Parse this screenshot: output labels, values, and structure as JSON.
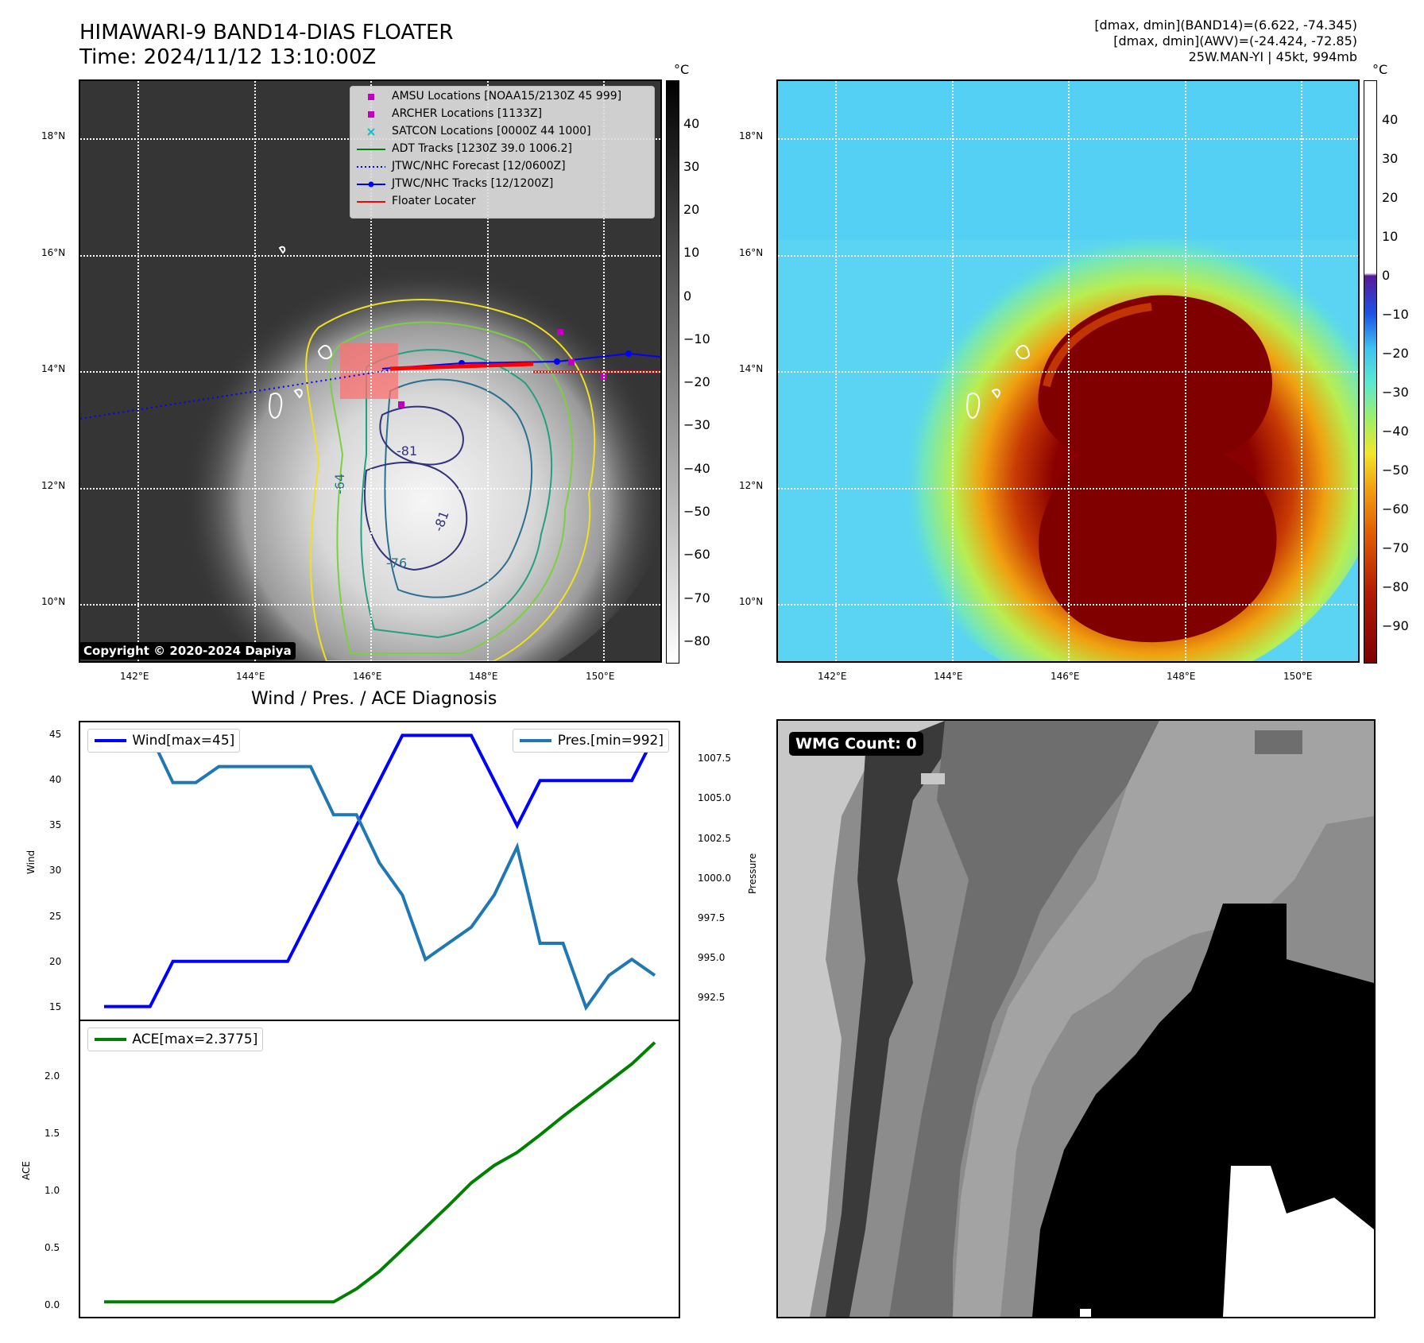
{
  "header": {
    "title_line1": "HIMAWARI-9 BAND14-DIAS FLOATER",
    "title_line2": "Time: 2024/11/12 13:10:00Z",
    "info_line1": "[dmax, dmin](BAND14)=(6.622, -74.345)",
    "info_line2": "[dmax, dmin](AWV)=(-24.424, -72.85)",
    "info_line3": "25W.MAN-YI | 45kt, 994mb"
  },
  "map": {
    "lon_ticks": [
      "142°E",
      "144°E",
      "146°E",
      "148°E",
      "150°E"
    ],
    "lat_ticks": [
      "18°N",
      "16°N",
      "14°N",
      "12°N",
      "10°N"
    ],
    "copyright": "Copyright © 2020-2024 Dapiya",
    "contour_labels": [
      "-81",
      "-64",
      "-81",
      "-76"
    ],
    "legend": [
      {
        "label": "AMSU Locations [NOAA15/2130Z 45 999]",
        "color": "#bf00bf"
      },
      {
        "label": "ARCHER Locations [1133Z]",
        "color": "#bf00bf"
      },
      {
        "label": "SATCON Locations [0000Z 44 1000]",
        "color": "#17becf"
      },
      {
        "label": "ADT Tracks [1230Z 39.0 1006.2]",
        "color": "#008000"
      },
      {
        "label": "JTWC/NHC Forecast [12/0600Z]",
        "color": "#0000ff"
      },
      {
        "label": "JTWC/NHC Tracks [12/1200Z]",
        "color": "#0000ff"
      },
      {
        "label": "Floater Locater",
        "color": "#ff0000"
      }
    ]
  },
  "colorbar_ir": {
    "unit": "°C",
    "ticks": [
      "40",
      "30",
      "20",
      "10",
      "0",
      "−10",
      "−20",
      "−30",
      "−40",
      "−50",
      "−60",
      "−70",
      "−80"
    ]
  },
  "colorbar_color": {
    "unit": "°C",
    "ticks": [
      "40",
      "30",
      "20",
      "10",
      "0",
      "−10",
      "−20",
      "−30",
      "−40",
      "−50",
      "−60",
      "−70",
      "−80",
      "−90"
    ]
  },
  "diagnosis": {
    "title": "Wind / Pres. / ACE Diagnosis",
    "wind_axis_label": "Wind",
    "pressure_axis_label": "Pressure",
    "ace_axis_label": "ACE",
    "wind_legend": "Wind[max=45]",
    "pressure_legend": "Pres.[min=992]",
    "ace_legend": "ACE[max=2.3775]",
    "wind_ticks": [
      "45",
      "40",
      "35",
      "30",
      "25",
      "20",
      "15"
    ],
    "pressure_ticks": [
      "1007.5",
      "1005.0",
      "1002.5",
      "1000.0",
      "997.5",
      "995.0",
      "992.5"
    ],
    "ace_ticks": [
      "2.0",
      "1.5",
      "1.0",
      "0.5",
      "0.0"
    ]
  },
  "chart_data": [
    {
      "type": "line",
      "title": "Wind / Pres. / ACE Diagnosis",
      "ylabel": "Wind",
      "ylim": [
        14,
        46
      ],
      "x": [
        0,
        1,
        2,
        3,
        4,
        5,
        6,
        7,
        8,
        9,
        10,
        11,
        12,
        13,
        14,
        15,
        16,
        17,
        18,
        19,
        20,
        21,
        22,
        23,
        24
      ],
      "series": [
        {
          "name": "Wind[max=45]",
          "color": "#0000ff",
          "values": [
            15,
            15,
            15,
            20,
            20,
            20,
            20,
            20,
            20,
            25,
            30,
            35,
            40,
            45,
            45,
            45,
            45,
            40,
            35,
            40,
            40,
            40,
            40,
            40,
            45
          ]
        }
      ]
    },
    {
      "type": "line",
      "ylabel": "Pressure",
      "ylim": [
        991.5,
        1009.5
      ],
      "x": [
        0,
        1,
        2,
        3,
        4,
        5,
        6,
        7,
        8,
        9,
        10,
        11,
        12,
        13,
        14,
        15,
        16,
        17,
        18,
        19,
        20,
        21,
        22,
        23,
        24
      ],
      "series": [
        {
          "name": "Pres.[min=992]",
          "color": "#1f77b4",
          "values": [
            1009,
            1009,
            1009,
            1006,
            1006,
            1007,
            1007,
            1007,
            1007,
            1007,
            1004,
            1004,
            1001,
            999,
            995,
            996,
            997,
            999,
            1002,
            996,
            996,
            992,
            994,
            995,
            994
          ]
        }
      ]
    },
    {
      "type": "line",
      "ylabel": "ACE",
      "ylim": [
        -0.1,
        2.5
      ],
      "x": [
        0,
        1,
        2,
        3,
        4,
        5,
        6,
        7,
        8,
        9,
        10,
        11,
        12,
        13,
        14,
        15,
        16,
        17,
        18,
        19,
        20,
        21,
        22,
        23,
        24
      ],
      "series": [
        {
          "name": "ACE[max=2.3775]",
          "color": "#008000",
          "values": [
            0,
            0,
            0,
            0,
            0,
            0,
            0,
            0,
            0,
            0,
            0,
            0.12,
            0.28,
            0.48,
            0.68,
            0.88,
            1.09,
            1.25,
            1.37,
            1.53,
            1.7,
            1.86,
            2.02,
            2.18,
            2.3775
          ]
        }
      ]
    }
  ],
  "wmg": {
    "badge": "WMG Count: 0"
  }
}
